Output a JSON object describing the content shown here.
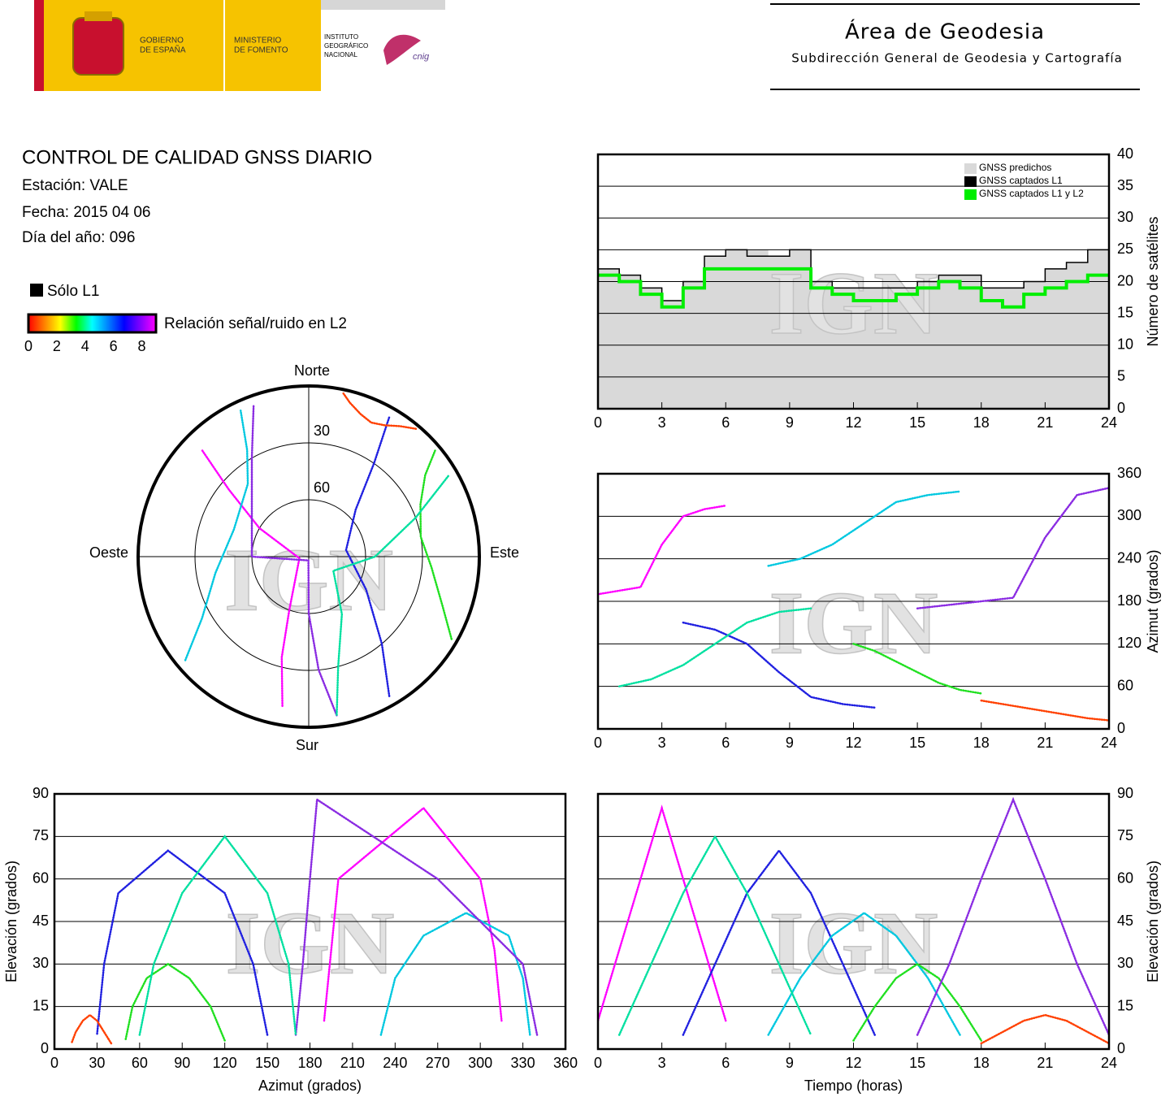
{
  "header": {
    "gobierno": [
      "GOBIERNO",
      "DE ESPAÑA"
    ],
    "ministerio": [
      "MINISTERIO",
      "DE FOMENTO"
    ],
    "instituto": [
      "INSTITUTO",
      "GEOGRÁFICO",
      "NACIONAL"
    ],
    "cnig": "cnig",
    "area_title": "Área de Geodesia",
    "area_subtitle": "Subdirección General de Geodesia y Cartografía"
  },
  "report": {
    "title": "CONTROL DE CALIDAD GNSS DIARIO",
    "station": "Estación: VALE",
    "date": "Fecha: 2015 04 06",
    "doy": "Día del año: 096",
    "only_l1": "Sólo L1",
    "colorbar_label": "Relación señal/ruido en L2",
    "colorbar_lim": [
      0,
      9
    ],
    "colorbar_ticks": [
      0,
      2,
      4,
      6,
      8
    ],
    "colorbar_colors": [
      "#ff0000",
      "#ff8000",
      "#ffff00",
      "#00ff00",
      "#00ffff",
      "#0080ff",
      "#0000ff",
      "#8000ff",
      "#ff00ff"
    ]
  },
  "chart_data": [
    {
      "type": "polar",
      "watermark": "IGN",
      "directions": {
        "north": "Norte",
        "south": "Sur",
        "east": "Este",
        "west": "Oeste"
      },
      "rlim": [
        90,
        0
      ],
      "rticks": [
        30,
        60
      ],
      "series": [
        {
          "color": "#ff00ff",
          "x": [
            190,
            195,
            200,
            260,
            300,
            310,
            315
          ],
          "values": [
            10,
            35,
            60,
            85,
            60,
            35,
            10
          ]
        },
        {
          "color": "#2020e0",
          "x": [
            150,
            140,
            120,
            80,
            45,
            35,
            30
          ],
          "values": [
            5,
            30,
            55,
            70,
            55,
            30,
            5
          ]
        },
        {
          "color": "#00c8e0",
          "x": [
            230,
            240,
            260,
            290,
            320,
            330,
            335
          ],
          "values": [
            5,
            25,
            40,
            48,
            40,
            25,
            5
          ]
        },
        {
          "color": "#20e020",
          "x": [
            120,
            110,
            95,
            80,
            65,
            55,
            50
          ],
          "values": [
            3,
            15,
            25,
            30,
            25,
            15,
            3
          ]
        },
        {
          "color": "#8a2be2",
          "x": [
            170,
            175,
            180,
            185,
            270,
            330,
            340
          ],
          "values": [
            5,
            30,
            60,
            88,
            60,
            30,
            5
          ]
        },
        {
          "color": "#ff4000",
          "x": [
            40,
            35,
            30,
            25,
            20,
            15,
            12
          ],
          "values": [
            2,
            6,
            10,
            12,
            10,
            6,
            2
          ]
        },
        {
          "color": "#00e0a0",
          "x": [
            60,
            70,
            90,
            120,
            150,
            165,
            170
          ],
          "values": [
            5,
            30,
            55,
            75,
            55,
            30,
            5
          ]
        }
      ]
    },
    {
      "type": "area",
      "watermark": "IGN",
      "ylabel": "Número de satélites",
      "axis_side": "right",
      "grid": true,
      "legend": "upper right",
      "xlim": [
        0,
        24
      ],
      "xticks": [
        0,
        3,
        6,
        9,
        12,
        15,
        18,
        21,
        24
      ],
      "ylim": [
        0,
        40
      ],
      "yticks": [
        0,
        5,
        10,
        15,
        20,
        25,
        30,
        35,
        40
      ],
      "x": [
        0,
        1,
        2,
        3,
        4,
        5,
        6,
        7,
        8,
        9,
        10,
        11,
        12,
        13,
        14,
        15,
        16,
        17,
        18,
        19,
        20,
        21,
        22,
        23,
        24
      ],
      "series": [
        {
          "name": "GNSS predichos",
          "color": "#d9d9d9",
          "fill": true,
          "values": [
            22,
            21,
            19,
            17,
            20,
            24,
            25,
            25,
            24,
            25,
            20,
            19,
            19,
            19,
            19,
            20,
            21,
            21,
            19,
            19,
            20,
            22,
            23,
            25,
            23
          ]
        },
        {
          "name": "GNSS captados L1",
          "color": "#000000",
          "values": [
            22,
            21,
            19,
            17,
            20,
            24,
            25,
            24,
            24,
            25,
            20,
            19,
            19,
            19,
            19,
            20,
            21,
            21,
            19,
            19,
            20,
            22,
            23,
            25,
            23
          ]
        },
        {
          "name": "GNSS captados L1 y L2",
          "color": "#00ee00",
          "values": [
            21,
            20,
            18,
            16,
            19,
            22,
            22,
            22,
            22,
            22,
            19,
            18,
            17,
            17,
            18,
            19,
            20,
            19,
            17,
            16,
            18,
            19,
            20,
            21,
            21
          ]
        }
      ]
    },
    {
      "type": "scatter",
      "watermark": "IGN",
      "ylabel": "Azimut (grados)",
      "axis_side": "right",
      "grid": true,
      "xlim": [
        0,
        24
      ],
      "xticks": [
        0,
        3,
        6,
        9,
        12,
        15,
        18,
        21,
        24
      ],
      "ylim": [
        0,
        360
      ],
      "yticks": [
        0,
        60,
        120,
        180,
        240,
        300,
        360
      ],
      "series": [
        {
          "color": "#ff00ff",
          "x": [
            0,
            1,
            2,
            3,
            4,
            5,
            6
          ],
          "values": [
            190,
            195,
            200,
            260,
            300,
            310,
            315
          ]
        },
        {
          "color": "#2020e0",
          "x": [
            4,
            5.5,
            7,
            8.5,
            10,
            11.5,
            13
          ],
          "values": [
            150,
            140,
            120,
            80,
            45,
            35,
            30
          ]
        },
        {
          "color": "#00c8e0",
          "x": [
            8,
            9.5,
            11,
            12.5,
            14,
            15.5,
            17
          ],
          "values": [
            230,
            240,
            260,
            290,
            320,
            330,
            335
          ]
        },
        {
          "color": "#20e020",
          "x": [
            12,
            13,
            14,
            15,
            16,
            17,
            18
          ],
          "values": [
            120,
            110,
            95,
            80,
            65,
            55,
            50
          ]
        },
        {
          "color": "#8a2be2",
          "x": [
            15,
            16.5,
            18,
            19.5,
            21,
            22.5,
            24
          ],
          "values": [
            170,
            175,
            180,
            185,
            270,
            330,
            340
          ]
        },
        {
          "color": "#ff4000",
          "x": [
            18,
            19,
            20,
            21,
            22,
            23,
            24
          ],
          "values": [
            40,
            35,
            30,
            25,
            20,
            15,
            12
          ]
        },
        {
          "color": "#00e0a0",
          "x": [
            1,
            2.5,
            4,
            5.5,
            7,
            8.5,
            10
          ],
          "values": [
            60,
            70,
            90,
            120,
            150,
            165,
            170
          ]
        }
      ]
    },
    {
      "type": "scatter",
      "watermark": "IGN",
      "xlabel": "Azimut (grados)",
      "ylabel": "Elevación (grados)",
      "axis_side": "left",
      "grid": true,
      "xlim": [
        0,
        360
      ],
      "xticks": [
        0,
        30,
        60,
        90,
        120,
        150,
        180,
        210,
        240,
        270,
        300,
        330,
        360
      ],
      "ylim": [
        0,
        90
      ],
      "yticks": [
        0,
        15,
        30,
        45,
        60,
        75,
        90
      ],
      "series": [
        {
          "color": "#ff00ff",
          "x": [
            190,
            195,
            200,
            260,
            300,
            310,
            315
          ],
          "values": [
            10,
            35,
            60,
            85,
            60,
            35,
            10
          ]
        },
        {
          "color": "#2020e0",
          "x": [
            150,
            140,
            120,
            80,
            45,
            35,
            30
          ],
          "values": [
            5,
            30,
            55,
            70,
            55,
            30,
            5
          ]
        },
        {
          "color": "#00c8e0",
          "x": [
            230,
            240,
            260,
            290,
            320,
            330,
            335
          ],
          "values": [
            5,
            25,
            40,
            48,
            40,
            25,
            5
          ]
        },
        {
          "color": "#20e020",
          "x": [
            120,
            110,
            95,
            80,
            65,
            55,
            50
          ],
          "values": [
            3,
            15,
            25,
            30,
            25,
            15,
            3
          ]
        },
        {
          "color": "#8a2be2",
          "x": [
            170,
            175,
            180,
            185,
            270,
            330,
            340
          ],
          "values": [
            5,
            30,
            60,
            88,
            60,
            30,
            5
          ]
        },
        {
          "color": "#ff4000",
          "x": [
            40,
            35,
            30,
            25,
            20,
            15,
            12
          ],
          "values": [
            2,
            6,
            10,
            12,
            10,
            6,
            2
          ]
        },
        {
          "color": "#00e0a0",
          "x": [
            60,
            70,
            90,
            120,
            150,
            165,
            170
          ],
          "values": [
            5,
            30,
            55,
            75,
            55,
            30,
            5
          ]
        }
      ]
    },
    {
      "type": "scatter",
      "watermark": "IGN",
      "xlabel": "Tiempo (horas)",
      "ylabel": "Elevación (grados)",
      "axis_side": "right",
      "grid": true,
      "xlim": [
        0,
        24
      ],
      "xticks": [
        0,
        3,
        6,
        9,
        12,
        15,
        18,
        21,
        24
      ],
      "ylim": [
        0,
        90
      ],
      "yticks": [
        0,
        15,
        30,
        45,
        60,
        75,
        90
      ],
      "series": [
        {
          "color": "#ff00ff",
          "x": [
            0,
            1,
            2,
            3,
            4,
            5,
            6
          ],
          "values": [
            10,
            35,
            60,
            85,
            60,
            35,
            10
          ]
        },
        {
          "color": "#2020e0",
          "x": [
            4,
            5.5,
            7,
            8.5,
            10,
            11.5,
            13
          ],
          "values": [
            5,
            30,
            55,
            70,
            55,
            30,
            5
          ]
        },
        {
          "color": "#00c8e0",
          "x": [
            8,
            9.5,
            11,
            12.5,
            14,
            15.5,
            17
          ],
          "values": [
            5,
            25,
            40,
            48,
            40,
            25,
            5
          ]
        },
        {
          "color": "#20e020",
          "x": [
            12,
            13,
            14,
            15,
            16,
            17,
            18
          ],
          "values": [
            3,
            15,
            25,
            30,
            25,
            15,
            3
          ]
        },
        {
          "color": "#8a2be2",
          "x": [
            15,
            16.5,
            18,
            19.5,
            21,
            22.5,
            24
          ],
          "values": [
            5,
            30,
            60,
            88,
            60,
            30,
            5
          ]
        },
        {
          "color": "#ff4000",
          "x": [
            18,
            19,
            20,
            21,
            22,
            23,
            24
          ],
          "values": [
            2,
            6,
            10,
            12,
            10,
            6,
            2
          ]
        },
        {
          "color": "#00e0a0",
          "x": [
            1,
            2.5,
            4,
            5.5,
            7,
            8.5,
            10
          ],
          "values": [
            5,
            30,
            55,
            75,
            55,
            30,
            5
          ]
        }
      ]
    }
  ]
}
